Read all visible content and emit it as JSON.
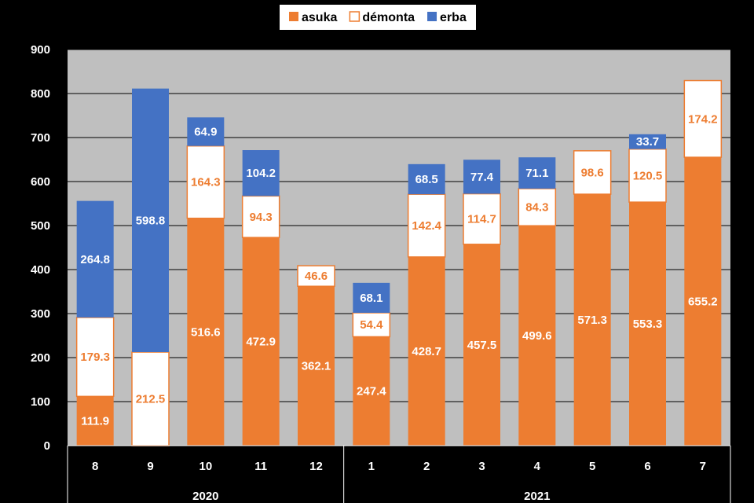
{
  "chart_data": {
    "type": "bar",
    "stacked": true,
    "title": "",
    "xlabel": "",
    "ylabel": "",
    "ylim": [
      0,
      900
    ],
    "yticks": [
      0,
      100,
      200,
      300,
      400,
      500,
      600,
      700,
      800,
      900
    ],
    "grid": true,
    "legend": "top-center",
    "categories": [
      "8",
      "9",
      "10",
      "11",
      "12",
      "1",
      "2",
      "3",
      "4",
      "5",
      "6",
      "7"
    ],
    "groups": [
      {
        "label": "2020",
        "categories": [
          "8",
          "9",
          "10",
          "11",
          "12"
        ]
      },
      {
        "label": "2021",
        "categories": [
          "1",
          "2",
          "3",
          "4",
          "5",
          "6",
          "7"
        ]
      }
    ],
    "series": [
      {
        "name": "asuka",
        "color": "#ED7D31",
        "label_color": "#ffffff",
        "values": [
          111.9,
          null,
          516.6,
          472.9,
          362.1,
          247.4,
          428.7,
          457.5,
          499.6,
          571.3,
          553.3,
          655.2
        ]
      },
      {
        "name": "démonta",
        "color": "#ffffff",
        "outline": "#ED7D31",
        "label_color": "#ED7D31",
        "values": [
          179.3,
          212.5,
          164.3,
          94.3,
          46.6,
          54.4,
          142.4,
          114.7,
          84.3,
          98.6,
          120.5,
          174.2
        ]
      },
      {
        "name": "erba",
        "color": "#4472C4",
        "label_color": "#ffffff",
        "values": [
          264.8,
          598.8,
          64.9,
          104.2,
          null,
          68.1,
          68.5,
          77.4,
          71.1,
          null,
          33.7,
          null
        ]
      }
    ]
  }
}
